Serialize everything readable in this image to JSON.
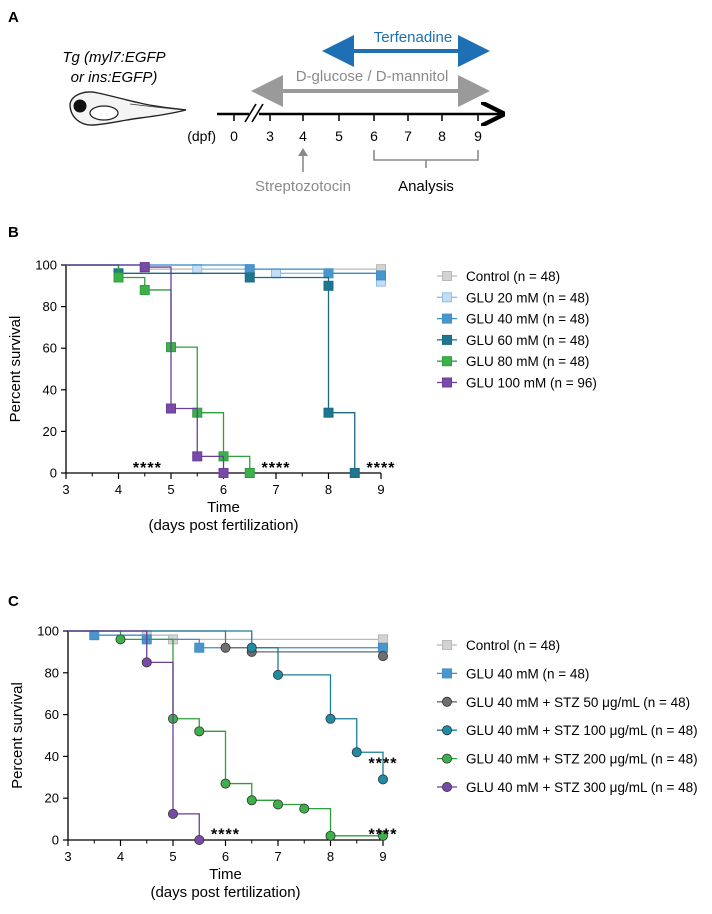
{
  "panel_a": {
    "label": "A",
    "fish_title_1": "Tg (myl7:EGFP",
    "fish_title_2": "or ins:EGFP)",
    "unit": "(dpf)",
    "days": [
      "0",
      "3",
      "4",
      "5",
      "6",
      "7",
      "8",
      "9"
    ],
    "terfenadine": "Terfenadine",
    "glucose": "D-glucose / D-mannitol",
    "stz": "Streptozotocin",
    "analysis": "Analysis",
    "colors": {
      "terfenadine": "#1f6fb5",
      "glucose": "#9a9a9a",
      "stz": "#8a8a8a"
    }
  },
  "chart_data": [
    {
      "panel": "B",
      "type": "line",
      "step": true,
      "xlabel": "Time",
      "xlabel2": "(days post fertilization)",
      "ylabel": "Percent survival",
      "xlim": [
        3,
        9
      ],
      "ylim": [
        0,
        100
      ],
      "xticks": [
        "3",
        "4",
        "5",
        "6",
        "7",
        "8",
        "9"
      ],
      "yticks": [
        "0",
        "20",
        "40",
        "60",
        "80",
        "100"
      ],
      "legend_position": "right",
      "annotations": [
        {
          "text": "****",
          "x": 4.55,
          "y": 3
        },
        {
          "text": "****",
          "x": 7.0,
          "y": 3
        },
        {
          "text": "****",
          "x": 9.0,
          "y": 3
        }
      ],
      "series": [
        {
          "name": "Control (n = 48)",
          "color": "#b9b9b9",
          "fill": "#d3d3d3",
          "marker": "square",
          "points": [
            [
              4.5,
              98
            ],
            [
              9,
              98
            ]
          ]
        },
        {
          "name": "GLU 20 mM (n = 48)",
          "color": "#8fbfe6",
          "fill": "#c4ddf3",
          "marker": "square",
          "points": [
            [
              5.5,
              98
            ],
            [
              7,
              96
            ],
            [
              9,
              92
            ]
          ]
        },
        {
          "name": "GLU 40 mM (n = 48)",
          "color": "#3e8fc7",
          "fill": "#4a96cc",
          "marker": "square",
          "points": [
            [
              6.5,
              98
            ],
            [
              8,
              96
            ],
            [
              9,
              95
            ]
          ]
        },
        {
          "name": "GLU 60 mM (n = 48)",
          "color": "#1b6a82",
          "fill": "#1e7690",
          "marker": "square",
          "points": [
            [
              4,
              96
            ],
            [
              6.5,
              94
            ],
            [
              8,
              90
            ],
            [
              8,
              29
            ],
            [
              8.5,
              0
            ]
          ]
        },
        {
          "name": "GLU 80 mM (n = 48)",
          "color": "#2f9e3c",
          "fill": "#3db04a",
          "marker": "square",
          "points": [
            [
              4,
              94
            ],
            [
              4.5,
              88
            ],
            [
              5,
              60.5
            ],
            [
              5.5,
              29
            ],
            [
              6,
              8
            ],
            [
              6.5,
              0
            ]
          ]
        },
        {
          "name": "GLU 100 mM (n = 96)",
          "color": "#6a3d9a",
          "fill": "#7a4aa8",
          "marker": "square",
          "points": [
            [
              4.5,
              99
            ],
            [
              5,
              31
            ],
            [
              5.5,
              8
            ],
            [
              6,
              0
            ]
          ]
        }
      ]
    },
    {
      "panel": "C",
      "type": "line",
      "step": true,
      "xlabel": "Time",
      "xlabel2": "(days post fertilization)",
      "ylabel": "Percent survival",
      "xlim": [
        3,
        9
      ],
      "ylim": [
        0,
        100
      ],
      "xticks": [
        "3",
        "4",
        "5",
        "6",
        "7",
        "8",
        "9"
      ],
      "yticks": [
        "0",
        "20",
        "40",
        "60",
        "80",
        "100"
      ],
      "legend_position": "right",
      "annotations": [
        {
          "text": "****",
          "x": 6.0,
          "y": 3
        },
        {
          "text": "****",
          "x": 9.0,
          "y": 3
        },
        {
          "text": "****",
          "x": 9.0,
          "y": 37
        }
      ],
      "series": [
        {
          "name": "Control (n = 48)",
          "color": "#b9b9b9",
          "fill": "#d3d3d3",
          "marker": "square",
          "points": [
            [
              4.5,
              98
            ],
            [
              5,
              96
            ],
            [
              9,
              96
            ]
          ]
        },
        {
          "name": "GLU 40 mM (n = 48)",
          "color": "#3e8fc7",
          "fill": "#4a96cc",
          "marker": "square",
          "points": [
            [
              3.5,
              98
            ],
            [
              4.5,
              96
            ],
            [
              5.5,
              92
            ],
            [
              9,
              92
            ]
          ]
        },
        {
          "name": "GLU 40 mM + STZ 50 μg/mL (n = 48)",
          "color": "#6b6b6b",
          "fill": "#6f6f6f",
          "marker": "circle",
          "points": [
            [
              6,
              92
            ],
            [
              6.5,
              90
            ],
            [
              9,
              88
            ]
          ]
        },
        {
          "name": "GLU 40 mM + STZ 100 μg/mL (n = 48)",
          "color": "#1b7d96",
          "fill": "#1f8ca6",
          "marker": "circle",
          "points": [
            [
              6.5,
              92
            ],
            [
              7,
              79
            ],
            [
              8,
              58
            ],
            [
              8.5,
              42
            ],
            [
              9,
              29
            ]
          ]
        },
        {
          "name": "GLU 40 mM + STZ 200 μg/mL (n = 48)",
          "color": "#2f9e3c",
          "fill": "#3db04a",
          "marker": "circle",
          "points": [
            [
              4,
              96
            ],
            [
              5,
              58
            ],
            [
              5.5,
              52
            ],
            [
              6,
              27
            ],
            [
              6.5,
              19
            ],
            [
              7,
              17
            ],
            [
              7.5,
              15
            ],
            [
              8,
              2
            ],
            [
              9,
              2
            ]
          ]
        },
        {
          "name": "GLU 40 mM + STZ 300 μg/mL (n = 48)",
          "color": "#6a3d9a",
          "fill": "#7a4aa8",
          "marker": "circle",
          "points": [
            [
              4.5,
              85
            ],
            [
              5,
              12.5
            ],
            [
              5.5,
              0
            ]
          ]
        }
      ]
    }
  ]
}
